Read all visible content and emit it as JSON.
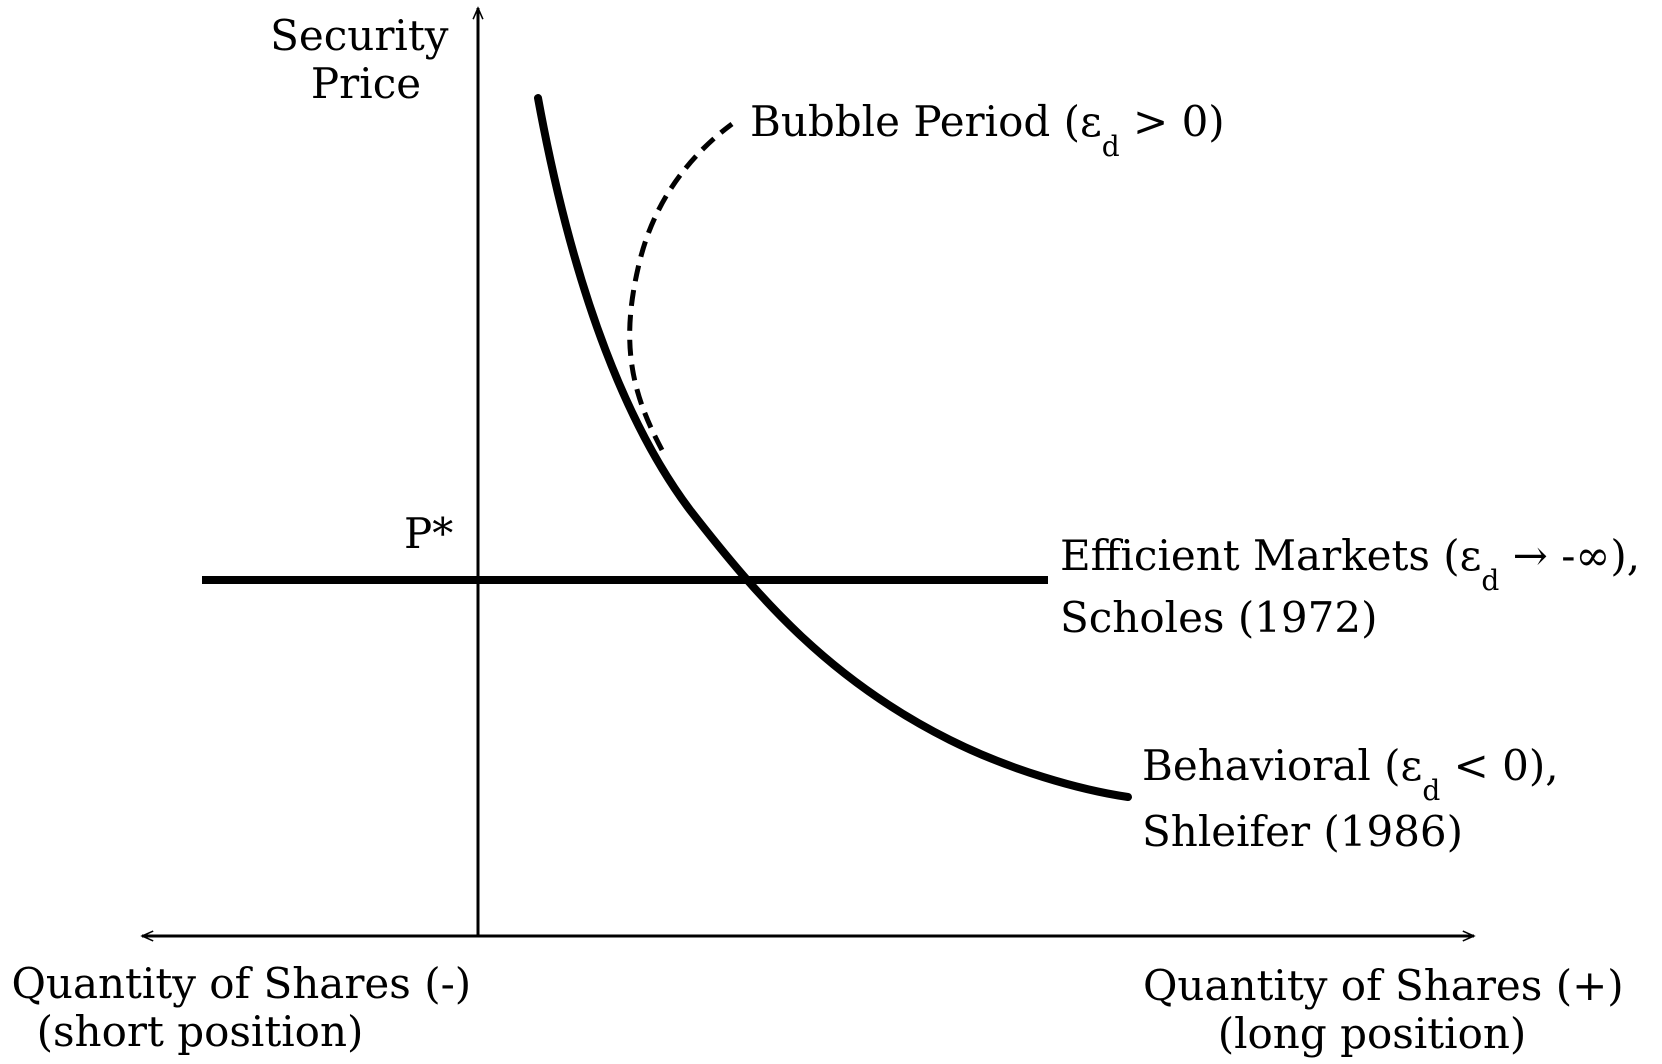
{
  "diagram": {
    "y_axis_label": {
      "line1": "Security",
      "line2": "Price"
    },
    "x_axis_left_label": {
      "line1": "Quantity of Shares (-)",
      "line2": "(short position)"
    },
    "x_axis_right_label": {
      "line1": "Quantity of Shares (+)",
      "line2": "(long position)"
    },
    "equilibrium_price_label": "P*",
    "curves": {
      "bubble": {
        "label_prefix": "Bubble Period (ε",
        "label_subscript": "d",
        "label_suffix": " > 0)",
        "style": "dashed"
      },
      "efficient": {
        "label_line1_prefix": "Efficient Markets (ε",
        "label_line1_subscript": "d",
        "label_line1_suffix": " → -∞),",
        "label_line2": "Scholes (1972)",
        "style": "solid"
      },
      "behavioral": {
        "label_line1_prefix": "Behavioral (ε",
        "label_line1_subscript": "d",
        "label_line1_suffix": " < 0),",
        "label_line2": "Shleifer (1986)",
        "style": "solid"
      }
    },
    "colors": {
      "line": "#000000",
      "background": "#ffffff"
    }
  }
}
